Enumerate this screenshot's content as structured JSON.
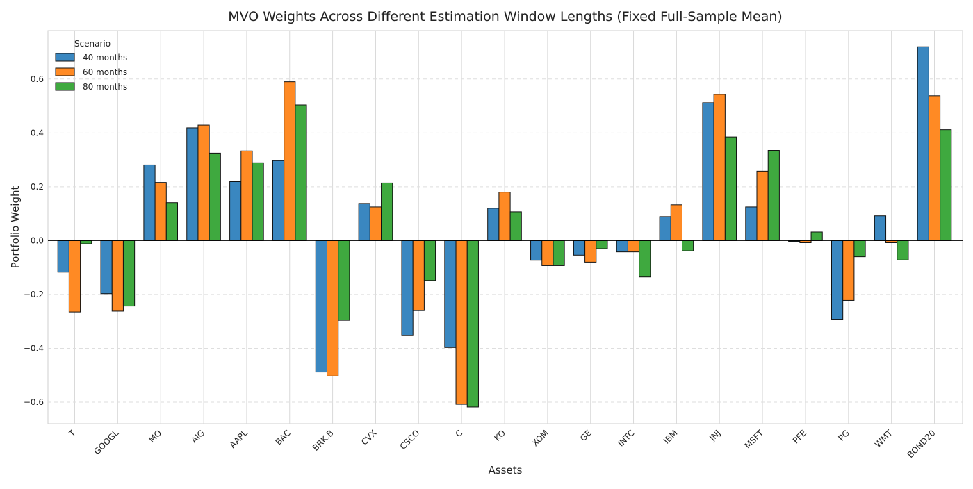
{
  "chart_data": {
    "type": "bar",
    "title": "MVO Weights Across Different Estimation Window Lengths (Fixed Full-Sample Mean)",
    "xlabel": "Assets",
    "ylabel": "Portfolio Weight",
    "ylim": [
      -0.68,
      0.78
    ],
    "yticks": [
      -0.6,
      -0.4,
      -0.2,
      0.0,
      0.2,
      0.4,
      0.6
    ],
    "ytick_labels": [
      "−0.6",
      "−0.4",
      "−0.2",
      "0.0",
      "0.2",
      "0.4",
      "0.6"
    ],
    "grid": true,
    "legend": {
      "title": "Scenario",
      "placement": "top-left"
    },
    "categories": [
      "T",
      "GOOGL",
      "MO",
      "AIG",
      "AAPL",
      "BAC",
      "BRK.B",
      "CVX",
      "CSCO",
      "C",
      "KO",
      "XOM",
      "GE",
      "INTC",
      "IBM",
      "JNJ",
      "MSFT",
      "PFE",
      "PG",
      "WMT",
      "BOND20"
    ],
    "series": [
      {
        "name": "40 months",
        "color": "#3a87c0",
        "values": [
          -0.117,
          -0.197,
          0.281,
          0.419,
          0.219,
          0.297,
          -0.488,
          0.138,
          -0.353,
          -0.397,
          0.12,
          -0.073,
          -0.054,
          -0.042,
          0.089,
          0.512,
          0.125,
          -0.003,
          -0.292,
          0.092,
          0.72
        ]
      },
      {
        "name": "60 months",
        "color": "#ff8a24",
        "values": [
          -0.265,
          -0.262,
          0.216,
          0.429,
          0.333,
          0.59,
          -0.503,
          0.125,
          -0.26,
          -0.608,
          0.18,
          -0.093,
          -0.08,
          -0.042,
          0.133,
          0.543,
          0.258,
          -0.008,
          -0.222,
          -0.008,
          0.538
        ]
      },
      {
        "name": "80 months",
        "color": "#3fa93f",
        "values": [
          -0.012,
          -0.243,
          0.141,
          0.325,
          0.289,
          0.504,
          -0.296,
          0.214,
          -0.148,
          -0.618,
          0.107,
          -0.093,
          -0.03,
          -0.135,
          -0.038,
          0.385,
          0.335,
          0.032,
          -0.06,
          -0.072,
          0.412
        ]
      }
    ]
  }
}
